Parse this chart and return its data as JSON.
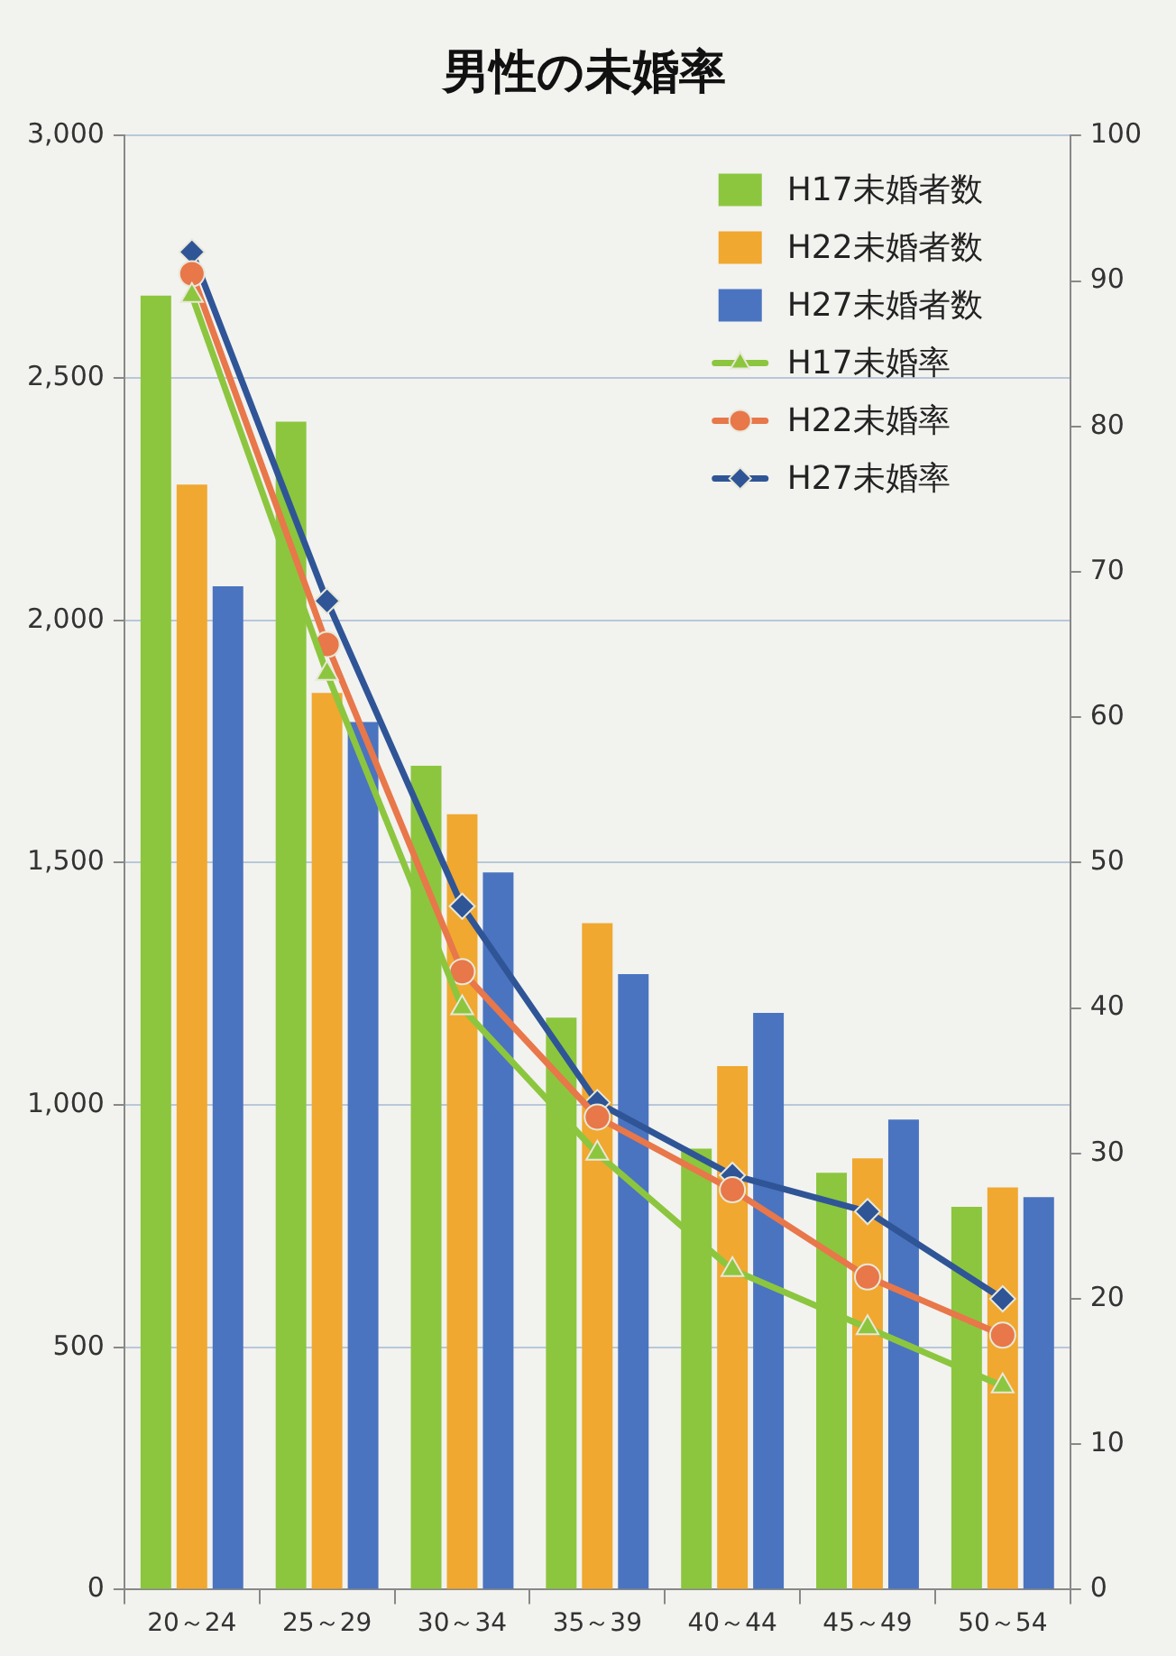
{
  "chart_data": {
    "type": "bar",
    "title": "男性の未婚率",
    "categories": [
      "20～24",
      "25～29",
      "30～34",
      "35～39",
      "40～44",
      "45～49",
      "50～54"
    ],
    "series": [
      {
        "name": "H17未婚者数",
        "color": "#8cc63e",
        "values": [
          2670,
          2410,
          1700,
          1180,
          910,
          860,
          790
        ]
      },
      {
        "name": "H22未婚者数",
        "color": "#f0a830",
        "values": [
          2280,
          1850,
          1600,
          1375,
          1080,
          890,
          830
        ]
      },
      {
        "name": "H27未婚者数",
        "color": "#4a74c0",
        "values": [
          2070,
          1790,
          1480,
          1270,
          1190,
          970,
          810
        ]
      },
      {
        "name": "H17未婚率",
        "type": "line",
        "axis": "y2",
        "marker": "triangle",
        "color": "#8cc63e",
        "values": [
          89,
          63,
          40,
          30,
          22,
          18,
          14
        ]
      },
      {
        "name": "H22未婚率",
        "type": "line",
        "axis": "y2",
        "marker": "circle",
        "color": "#e8774a",
        "values": [
          90.5,
          65,
          42.5,
          32.5,
          27.5,
          21.5,
          17.5
        ]
      },
      {
        "name": "H27未婚率",
        "type": "line",
        "axis": "y2",
        "marker": "diamond",
        "color": "#2f5597",
        "values": [
          92,
          68,
          47,
          33.5,
          28.5,
          26,
          20
        ]
      }
    ],
    "ylim": [
      0,
      3000
    ],
    "yticks": [
      {
        "value": 0,
        "label": "0"
      },
      {
        "value": 500,
        "label": "500"
      },
      {
        "value": 1000,
        "label": "1,000"
      },
      {
        "value": 1500,
        "label": "1,500"
      },
      {
        "value": 2000,
        "label": "2,000"
      },
      {
        "value": 2500,
        "label": "2,500"
      },
      {
        "value": 3000,
        "label": "3,000"
      }
    ],
    "y2lim": [
      0,
      100
    ],
    "y2ticks": [
      0,
      10,
      20,
      30,
      40,
      50,
      60,
      70,
      80,
      90,
      100
    ],
    "grid": "y",
    "legend": "top right"
  }
}
